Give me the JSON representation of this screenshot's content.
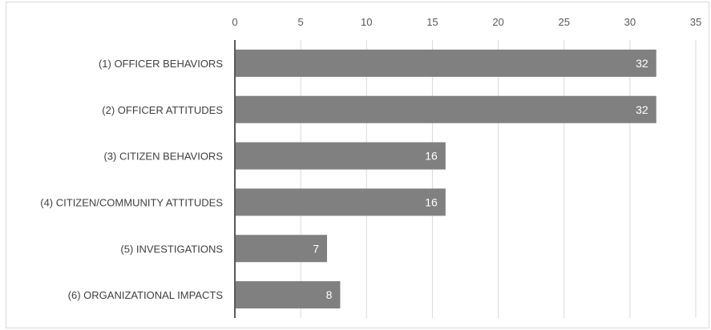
{
  "chart_data": {
    "type": "bar",
    "orientation": "horizontal",
    "categories": [
      "(1) OFFICER BEHAVIORS",
      "(2) OFFICER ATTITUDES",
      "(3) CITIZEN BEHAVIORS",
      "(4) CITIZEN/COMMUNITY ATTITUDES",
      "(5) INVESTIGATIONS",
      "(6) ORGANIZATIONAL IMPACTS"
    ],
    "values": [
      32,
      32,
      16,
      16,
      7,
      8
    ],
    "data_labels": [
      "32",
      "32",
      "16",
      "16",
      "7",
      "8"
    ],
    "title": "",
    "xlabel": "",
    "ylabel": "",
    "xlim": [
      0,
      35
    ],
    "x_ticks": [
      "0",
      "5",
      "10",
      "15",
      "20",
      "25",
      "30",
      "35"
    ],
    "x_axis_position": "top",
    "grid": true,
    "legend": "none",
    "colors": {
      "bar": "#808080",
      "grid": "#d9d9d9",
      "axis": "#595959",
      "tick_text": "#595959",
      "category_text": "#404040",
      "data_label_text": "#ffffff"
    }
  }
}
